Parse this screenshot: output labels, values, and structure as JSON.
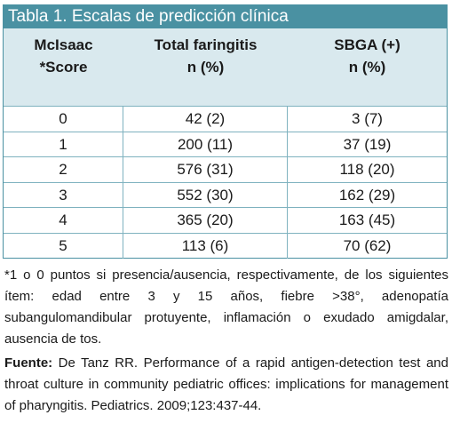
{
  "table": {
    "title": "Tabla 1. Escalas de predicción clínica",
    "headers": [
      {
        "line1": "McIsaac",
        "line2": "*Score"
      },
      {
        "line1": "Total faringitis",
        "line2": "n (%)"
      },
      {
        "line1": "SBGA (+)",
        "line2": "n (%)"
      }
    ],
    "rows": [
      {
        "score": "0",
        "total": "42 (2)",
        "sbga": "3 (7)"
      },
      {
        "score": "1",
        "total": "200 (11)",
        "sbga": "37 (19)"
      },
      {
        "score": "2",
        "total": "576 (31)",
        "sbga": "118 (20)"
      },
      {
        "score": "3",
        "total": "552 (30)",
        "sbga": "162 (29)"
      },
      {
        "score": "4",
        "total": "365 (20)",
        "sbga": "163 (45)"
      },
      {
        "score": "5",
        "total": "113 (6)",
        "sbga": "70 (62)"
      }
    ]
  },
  "footnote": "*1 o 0 puntos si presencia/ausencia, respectivamente, de los siguientes ítem: edad entre 3 y 15 años, fiebre >38°, adenopatía subangulomandibular protuyente, inflamación o exudado amigdalar, ausencia de tos.",
  "source": {
    "label": "Fuente:",
    "text": " De Tanz RR. Performance of a rapid antigen-detection test and throat culture in community pediatric offices: implications for management of pharyngitis. Pediatrics. 2009;123:437-44."
  },
  "colors": {
    "header_bg": "#4a91a2",
    "subheader_bg": "#d9e9ee",
    "grid": "#7fb2bf"
  }
}
